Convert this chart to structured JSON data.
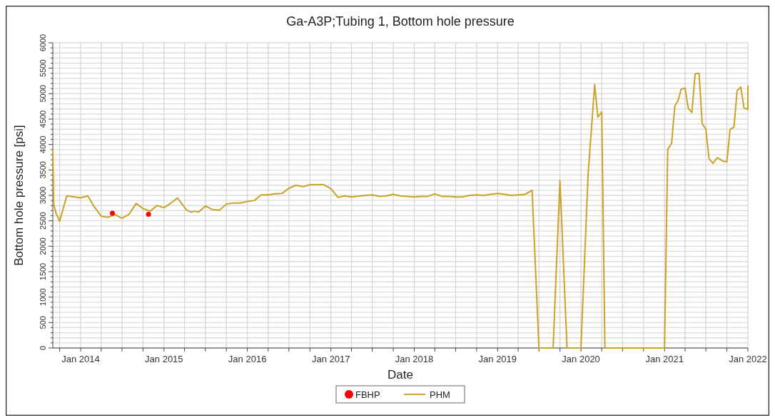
{
  "chart_data": {
    "type": "line",
    "title": "Ga-A3P;Tubing 1, Bottom hole pressure",
    "xlabel": "Date",
    "ylabel": "Bottom hole pressure [psi]",
    "xlim": [
      "2013-09-01",
      "2022-01-01"
    ],
    "ylim": [
      0,
      6000
    ],
    "xticks": [
      {
        "value": "2013-10-01",
        "label": null
      },
      {
        "value": "2014-01-01",
        "label": "Jan 2014"
      },
      {
        "value": "2014-04-01",
        "label": null
      },
      {
        "value": "2014-07-01",
        "label": null
      },
      {
        "value": "2014-10-01",
        "label": null
      },
      {
        "value": "2015-01-01",
        "label": "Jan 2015"
      },
      {
        "value": "2015-04-01",
        "label": null
      },
      {
        "value": "2015-07-01",
        "label": null
      },
      {
        "value": "2015-10-01",
        "label": null
      },
      {
        "value": "2016-01-01",
        "label": "Jan 2016"
      },
      {
        "value": "2016-04-01",
        "label": null
      },
      {
        "value": "2016-07-01",
        "label": null
      },
      {
        "value": "2016-10-01",
        "label": null
      },
      {
        "value": "2017-01-01",
        "label": "Jan 2017"
      },
      {
        "value": "2017-04-01",
        "label": null
      },
      {
        "value": "2017-07-01",
        "label": null
      },
      {
        "value": "2017-10-01",
        "label": null
      },
      {
        "value": "2018-01-01",
        "label": "Jan 2018"
      },
      {
        "value": "2018-04-01",
        "label": null
      },
      {
        "value": "2018-07-01",
        "label": null
      },
      {
        "value": "2018-10-01",
        "label": null
      },
      {
        "value": "2019-01-01",
        "label": "Jan 2019"
      },
      {
        "value": "2019-04-01",
        "label": null
      },
      {
        "value": "2019-07-01",
        "label": null
      },
      {
        "value": "2019-10-01",
        "label": null
      },
      {
        "value": "2020-01-01",
        "label": "Jan 2020"
      },
      {
        "value": "2020-04-01",
        "label": null
      },
      {
        "value": "2020-07-01",
        "label": null
      },
      {
        "value": "2020-10-01",
        "label": null
      },
      {
        "value": "2021-01-01",
        "label": "Jan 2021"
      },
      {
        "value": "2021-04-01",
        "label": null
      },
      {
        "value": "2021-07-01",
        "label": null
      },
      {
        "value": "2021-10-01",
        "label": null
      },
      {
        "value": "2022-01-01",
        "label": "Jan 2022"
      }
    ],
    "yticks": [
      0,
      {
        "value": 100,
        "label": null
      },
      {
        "value": 200,
        "label": null
      },
      {
        "value": 300,
        "label": null
      },
      {
        "value": 400,
        "label": null
      },
      500,
      {
        "value": 600,
        "label": null
      },
      {
        "value": 700,
        "label": null
      },
      {
        "value": 800,
        "label": null
      },
      {
        "value": 900,
        "label": null
      },
      1000,
      {
        "value": 1100,
        "label": null
      },
      {
        "value": 1200,
        "label": null
      },
      {
        "value": 1300,
        "label": null
      },
      {
        "value": 1400,
        "label": null
      },
      1500,
      {
        "value": 1600,
        "label": null
      },
      {
        "value": 1700,
        "label": null
      },
      {
        "value": 1800,
        "label": null
      },
      {
        "value": 1900,
        "label": null
      },
      2000,
      {
        "value": 2100,
        "label": null
      },
      {
        "value": 2200,
        "label": null
      },
      {
        "value": 2300,
        "label": null
      },
      {
        "value": 2400,
        "label": null
      },
      2500,
      {
        "value": 2600,
        "label": null
      },
      {
        "value": 2700,
        "label": null
      },
      {
        "value": 2800,
        "label": null
      },
      {
        "value": 2900,
        "label": null
      },
      3000,
      {
        "value": 3100,
        "label": null
      },
      {
        "value": 3200,
        "label": null
      },
      {
        "value": 3300,
        "label": null
      },
      {
        "value": 3400,
        "label": null
      },
      3500,
      {
        "value": 3600,
        "label": null
      },
      {
        "value": 3700,
        "label": null
      },
      {
        "value": 3800,
        "label": null
      },
      {
        "value": 3900,
        "label": null
      },
      4000,
      {
        "value": 4100,
        "label": null
      },
      {
        "value": 4200,
        "label": null
      },
      {
        "value": 4300,
        "label": null
      },
      {
        "value": 4400,
        "label": null
      },
      4500,
      {
        "value": 4600,
        "label": null
      },
      {
        "value": 4700,
        "label": null
      },
      {
        "value": 4800,
        "label": null
      },
      {
        "value": 4900,
        "label": null
      },
      5000,
      {
        "value": 5100,
        "label": null
      },
      {
        "value": 5200,
        "label": null
      },
      {
        "value": 5300,
        "label": null
      },
      {
        "value": 5400,
        "label": null
      },
      5500,
      {
        "value": 5600,
        "label": null
      },
      {
        "value": 5700,
        "label": null
      },
      {
        "value": 5800,
        "label": null
      },
      {
        "value": 5900,
        "label": null
      },
      6000
    ],
    "grid": true,
    "legend": "bottom",
    "line_style": "solid",
    "series": [
      {
        "name": "FBHP",
        "type": "scatter",
        "marker": "circle",
        "color": "#ff0000",
        "x": [
          "2014-05-20",
          "2014-10-25"
        ],
        "values": [
          2650,
          2630
        ]
      },
      {
        "name": "PHM",
        "marker": "none",
        "color": "#c9a227",
        "x": [
          "2013-09-01",
          "2013-09-05",
          "2013-09-15",
          "2013-10-01",
          "2013-11-01",
          "2014-01-01",
          "2014-02-01",
          "2014-03-01",
          "2014-04-01",
          "2014-05-01",
          "2014-06-01",
          "2014-07-01",
          "2014-08-01",
          "2014-09-01",
          "2014-10-01",
          "2014-11-01",
          "2014-12-01",
          "2015-01-01",
          "2015-02-01",
          "2015-03-01",
          "2015-04-10",
          "2015-05-01",
          "2015-05-15",
          "2015-06-01",
          "2015-07-01",
          "2015-08-01",
          "2015-09-01",
          "2015-10-01",
          "2015-11-01",
          "2015-12-01",
          "2016-01-01",
          "2016-02-01",
          "2016-03-01",
          "2016-04-01",
          "2016-05-01",
          "2016-06-01",
          "2016-07-01",
          "2016-08-01",
          "2016-09-01",
          "2016-10-01",
          "2016-12-01",
          "2017-01-01",
          "2017-02-01",
          "2017-03-01",
          "2017-04-01",
          "2017-06-01",
          "2017-07-01",
          "2017-08-01",
          "2017-09-01",
          "2017-10-01",
          "2017-11-01",
          "2018-01-01",
          "2018-02-01",
          "2018-03-01",
          "2018-04-01",
          "2018-05-01",
          "2018-06-01",
          "2018-07-01",
          "2018-08-01",
          "2018-09-01",
          "2018-10-01",
          "2018-11-01",
          "2018-12-01",
          "2019-01-01",
          "2019-02-01",
          "2019-03-01",
          "2019-05-01",
          "2019-06-01",
          "2019-07-01",
          "2019-09-01",
          "2019-10-01",
          "2019-11-01",
          "2020-01-01",
          "2020-02-01",
          "2020-03-01",
          "2020-03-15",
          "2020-04-01",
          "2020-04-15",
          "2021-01-01",
          "2021-01-15",
          "2021-02-01",
          "2021-02-15",
          "2021-03-01",
          "2021-03-15",
          "2021-04-01",
          "2021-04-15",
          "2021-05-01",
          "2021-05-15",
          "2021-06-01",
          "2021-06-15",
          "2021-07-01",
          "2021-07-15",
          "2021-08-01",
          "2021-08-20",
          "2021-09-01",
          "2021-09-15",
          "2021-10-01",
          "2021-10-15",
          "2021-11-01",
          "2021-11-15",
          "2021-12-01",
          "2021-12-15",
          "2022-01-01",
          "2022-01-01"
        ],
        "values": [
          3900,
          2830,
          2650,
          2490,
          2990,
          2950,
          2990,
          2780,
          2590,
          2570,
          2620,
          2550,
          2630,
          2840,
          2740,
          2690,
          2800,
          2760,
          2850,
          2950,
          2710,
          2670,
          2690,
          2670,
          2790,
          2720,
          2710,
          2830,
          2850,
          2850,
          2880,
          2900,
          3010,
          3010,
          3030,
          3040,
          3140,
          3200,
          3170,
          3210,
          3210,
          3130,
          2960,
          2990,
          2970,
          3000,
          3010,
          2980,
          2990,
          3020,
          2990,
          2970,
          2980,
          2980,
          3030,
          2980,
          2980,
          2970,
          2970,
          3000,
          3010,
          3000,
          3020,
          3040,
          3020,
          3000,
          3020,
          3100,
          0,
          0,
          3290,
          0,
          0,
          3390,
          5180,
          4540,
          4640,
          0,
          0,
          3910,
          4020,
          4760,
          4860,
          5090,
          5110,
          4710,
          4630,
          5390,
          5400,
          4410,
          4300,
          3720,
          3630,
          3740,
          3710,
          3670,
          3660,
          4300,
          4340,
          5060,
          5130,
          4720,
          4690,
          5160
        ]
      }
    ]
  }
}
